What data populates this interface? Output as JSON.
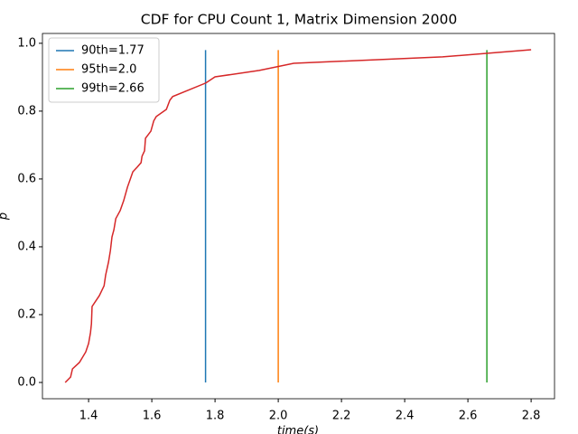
{
  "chart_data": {
    "type": "line",
    "title": "CDF for CPU Count 1, Matrix Dimension 2000",
    "x_label": "time(s)",
    "y_label": "p",
    "xlim": [
      1.254,
      2.874
    ],
    "ylim": [
      -0.048,
      1.029
    ],
    "xticks": [
      1.4,
      1.6,
      1.8,
      {
        "value": 2,
        "label": "2.0"
      },
      2.2,
      2.4,
      2.6,
      2.8
    ],
    "yticks": [
      {
        "value": 0,
        "label": "0.0"
      },
      0.2,
      0.4,
      0.6,
      0.8,
      {
        "value": 1,
        "label": "1.0"
      }
    ],
    "legend": "upper left",
    "series": [
      {
        "name": "90th=1.77",
        "color": "#1f77b4",
        "x": [
          1.77,
          1.77
        ],
        "values": [
          0,
          0.98
        ]
      },
      {
        "name": "95th=2.0",
        "color": "#ff7f0e",
        "x": [
          2.0,
          2.0
        ],
        "values": [
          0,
          0.98
        ]
      },
      {
        "name": "99th=2.66",
        "color": "#2ca02c",
        "x": [
          2.66,
          2.66
        ],
        "values": [
          0,
          0.98
        ]
      },
      {
        "color": "#d62728",
        "x": [
          1.326,
          1.343,
          1.349,
          1.371,
          1.391,
          1.4,
          1.406,
          1.409,
          1.411,
          1.434,
          1.449,
          1.454,
          1.463,
          1.469,
          1.474,
          1.48,
          1.486,
          1.5,
          1.511,
          1.523,
          1.534,
          1.54,
          1.554,
          1.566,
          1.569,
          1.577,
          1.58,
          1.597,
          1.606,
          1.614,
          1.646,
          1.657,
          1.666,
          1.771,
          1.8,
          1.94,
          2.049,
          2.52,
          2.8
        ],
        "values": [
          0,
          0.016,
          0.04,
          0.059,
          0.09,
          0.115,
          0.147,
          0.173,
          0.224,
          0.256,
          0.285,
          0.317,
          0.355,
          0.389,
          0.429,
          0.45,
          0.483,
          0.507,
          0.536,
          0.576,
          0.605,
          0.621,
          0.635,
          0.648,
          0.667,
          0.683,
          0.72,
          0.741,
          0.771,
          0.784,
          0.805,
          0.832,
          0.843,
          0.883,
          0.901,
          0.92,
          0.941,
          0.96,
          0.981
        ]
      }
    ]
  }
}
